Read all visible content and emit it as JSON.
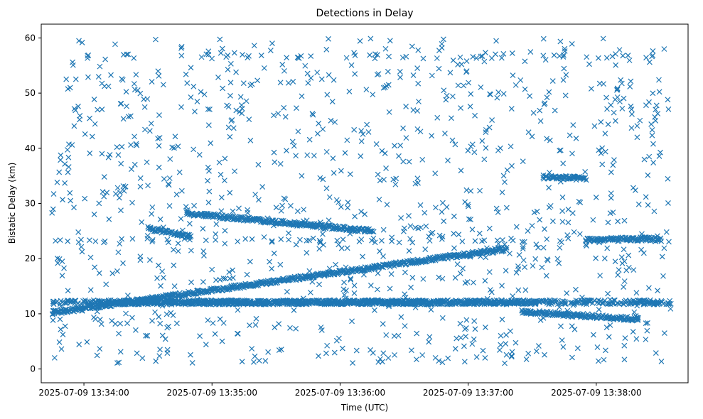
{
  "chart_data": {
    "type": "scatter",
    "title": "Detections in Delay",
    "xlabel": "Time (UTC)",
    "ylabel": "Bistatic Delay (km)",
    "x_unit": "time",
    "x_start_label": "2025-07-09 13:33:40",
    "xlim": [
      "2025-07-09 13:33:40",
      "2025-07-09 13:38:43"
    ],
    "ylim": [
      -2.5,
      62.5
    ],
    "x_ticks": [
      "2025-07-09 13:34:00",
      "2025-07-09 13:35:00",
      "2025-07-09 13:36:00",
      "2025-07-09 13:37:00",
      "2025-07-09 13:38:00"
    ],
    "y_ticks": [
      "0",
      "10",
      "20",
      "30",
      "40",
      "50",
      "60"
    ],
    "grid": false,
    "legend": "none",
    "marker": "x",
    "color": "#1f77b4",
    "tracks": [
      {
        "from": [
          "2025-07-09 13:33:45",
          10.2
        ],
        "to": [
          "2025-07-09 13:37:18",
          21.8
        ]
      },
      {
        "from": [
          "2025-07-09 13:34:48",
          28.2
        ],
        "to": [
          "2025-07-09 13:36:15",
          25.0
        ]
      },
      {
        "from": [
          "2025-07-09 13:34:15",
          12.0
        ],
        "to": [
          "2025-07-09 13:37:30",
          12.1
        ]
      },
      {
        "from": [
          "2025-07-09 13:37:25",
          10.4
        ],
        "to": [
          "2025-07-09 13:38:20",
          9.0
        ]
      },
      {
        "from": [
          "2025-07-09 13:34:30",
          25.5
        ],
        "to": [
          "2025-07-09 13:34:50",
          24.0
        ]
      },
      {
        "from": [
          "2025-07-09 13:37:35",
          34.8
        ],
        "to": [
          "2025-07-09 13:37:55",
          34.5
        ]
      },
      {
        "from": [
          "2025-07-09 13:37:55",
          23.4
        ],
        "to": [
          "2025-07-09 13:38:30",
          23.6
        ]
      }
    ],
    "points_description_count": 0
  }
}
